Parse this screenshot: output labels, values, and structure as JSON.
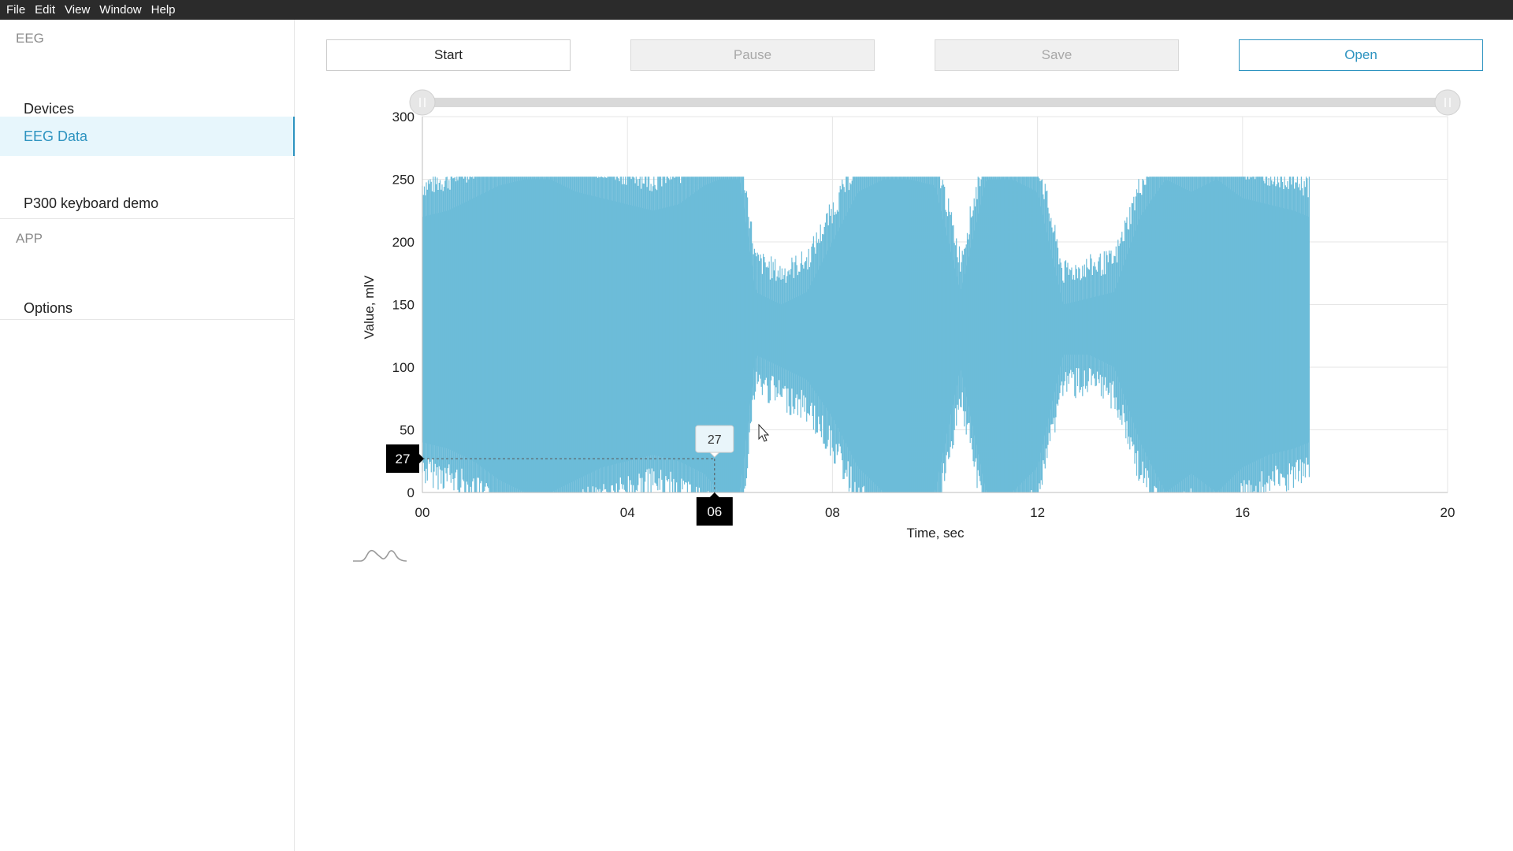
{
  "menu": [
    "File",
    "Edit",
    "View",
    "Window",
    "Help"
  ],
  "sidebar": {
    "sections": [
      {
        "title": "EEG",
        "items": [
          "Devices",
          "EEG Data",
          "P300 keyboard demo"
        ]
      },
      {
        "title": "APP",
        "items": [
          "Options"
        ]
      }
    ],
    "active_item": "EEG Data"
  },
  "toolbar": {
    "start_label": "Start",
    "pause_label": "Pause",
    "save_label": "Save",
    "open_label": "Open",
    "pause_enabled": false,
    "save_enabled": false
  },
  "colors": {
    "accent": "#2d93c0",
    "signal": "#6cbcd9",
    "active_bg": "#e7f6fc",
    "menubar_bg": "#2b2b2b"
  },
  "chart_data": {
    "type": "area",
    "xlabel": "Time, sec",
    "ylabel": "Value, mlV",
    "xlim": [
      0,
      20
    ],
    "ylim": [
      0,
      300
    ],
    "x_ticks": [
      "00",
      "04",
      "08",
      "12",
      "16",
      "20"
    ],
    "y_ticks": [
      0,
      50,
      100,
      150,
      200,
      250,
      300
    ],
    "grid": true,
    "signal_end_sec": 17.3,
    "envelope": [
      {
        "t": 0.0,
        "low": 40,
        "high": 220
      },
      {
        "t": 0.5,
        "low": 35,
        "high": 225
      },
      {
        "t": 1.0,
        "low": 25,
        "high": 235
      },
      {
        "t": 1.5,
        "low": 10,
        "high": 245
      },
      {
        "t": 2.0,
        "low": 0,
        "high": 250
      },
      {
        "t": 2.5,
        "low": 0,
        "high": 250
      },
      {
        "t": 3.0,
        "low": 10,
        "high": 240
      },
      {
        "t": 3.5,
        "low": 20,
        "high": 235
      },
      {
        "t": 4.0,
        "low": 25,
        "high": 230
      },
      {
        "t": 4.5,
        "low": 30,
        "high": 225
      },
      {
        "t": 5.0,
        "low": 25,
        "high": 230
      },
      {
        "t": 5.5,
        "low": 15,
        "high": 245
      },
      {
        "t": 5.8,
        "low": 0,
        "high": 250
      },
      {
        "t": 6.2,
        "low": 0,
        "high": 250
      },
      {
        "t": 6.5,
        "low": 110,
        "high": 160
      },
      {
        "t": 7.0,
        "low": 100,
        "high": 150
      },
      {
        "t": 7.5,
        "low": 90,
        "high": 160
      },
      {
        "t": 8.0,
        "low": 60,
        "high": 200
      },
      {
        "t": 8.5,
        "low": 20,
        "high": 240
      },
      {
        "t": 9.0,
        "low": 0,
        "high": 250
      },
      {
        "t": 9.5,
        "low": 0,
        "high": 250
      },
      {
        "t": 10.0,
        "low": 0,
        "high": 245
      },
      {
        "t": 10.5,
        "low": 100,
        "high": 160
      },
      {
        "t": 11.0,
        "low": 0,
        "high": 250
      },
      {
        "t": 11.5,
        "low": 0,
        "high": 250
      },
      {
        "t": 12.0,
        "low": 20,
        "high": 240
      },
      {
        "t": 12.5,
        "low": 110,
        "high": 150
      },
      {
        "t": 13.0,
        "low": 110,
        "high": 155
      },
      {
        "t": 13.5,
        "low": 100,
        "high": 160
      },
      {
        "t": 14.0,
        "low": 40,
        "high": 220
      },
      {
        "t": 14.5,
        "low": 0,
        "high": 250
      },
      {
        "t": 15.0,
        "low": 15,
        "high": 240
      },
      {
        "t": 15.5,
        "low": 0,
        "high": 250
      },
      {
        "t": 16.0,
        "low": 20,
        "high": 235
      },
      {
        "t": 16.5,
        "low": 30,
        "high": 230
      },
      {
        "t": 17.0,
        "low": 35,
        "high": 225
      },
      {
        "t": 17.3,
        "low": 40,
        "high": 220
      }
    ],
    "crosshair": {
      "x_label": "06",
      "y_label": "27",
      "tooltip": "27",
      "x_value": 5.7,
      "y_value": 27
    }
  }
}
